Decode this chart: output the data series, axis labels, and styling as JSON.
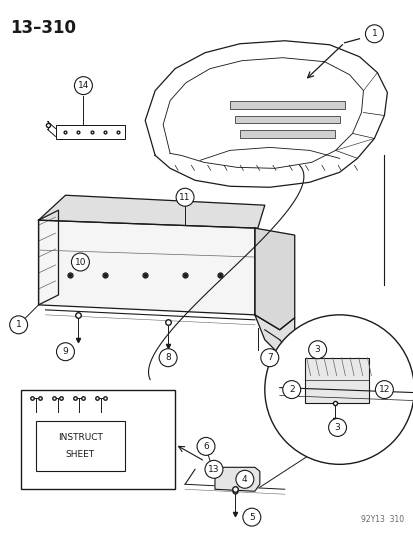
{
  "title": "13–310",
  "footnote": "92Y13  310",
  "background": "#ffffff",
  "dark": "#1a1a1a",
  "gray": "#666666",
  "light_gray": "#cccccc"
}
